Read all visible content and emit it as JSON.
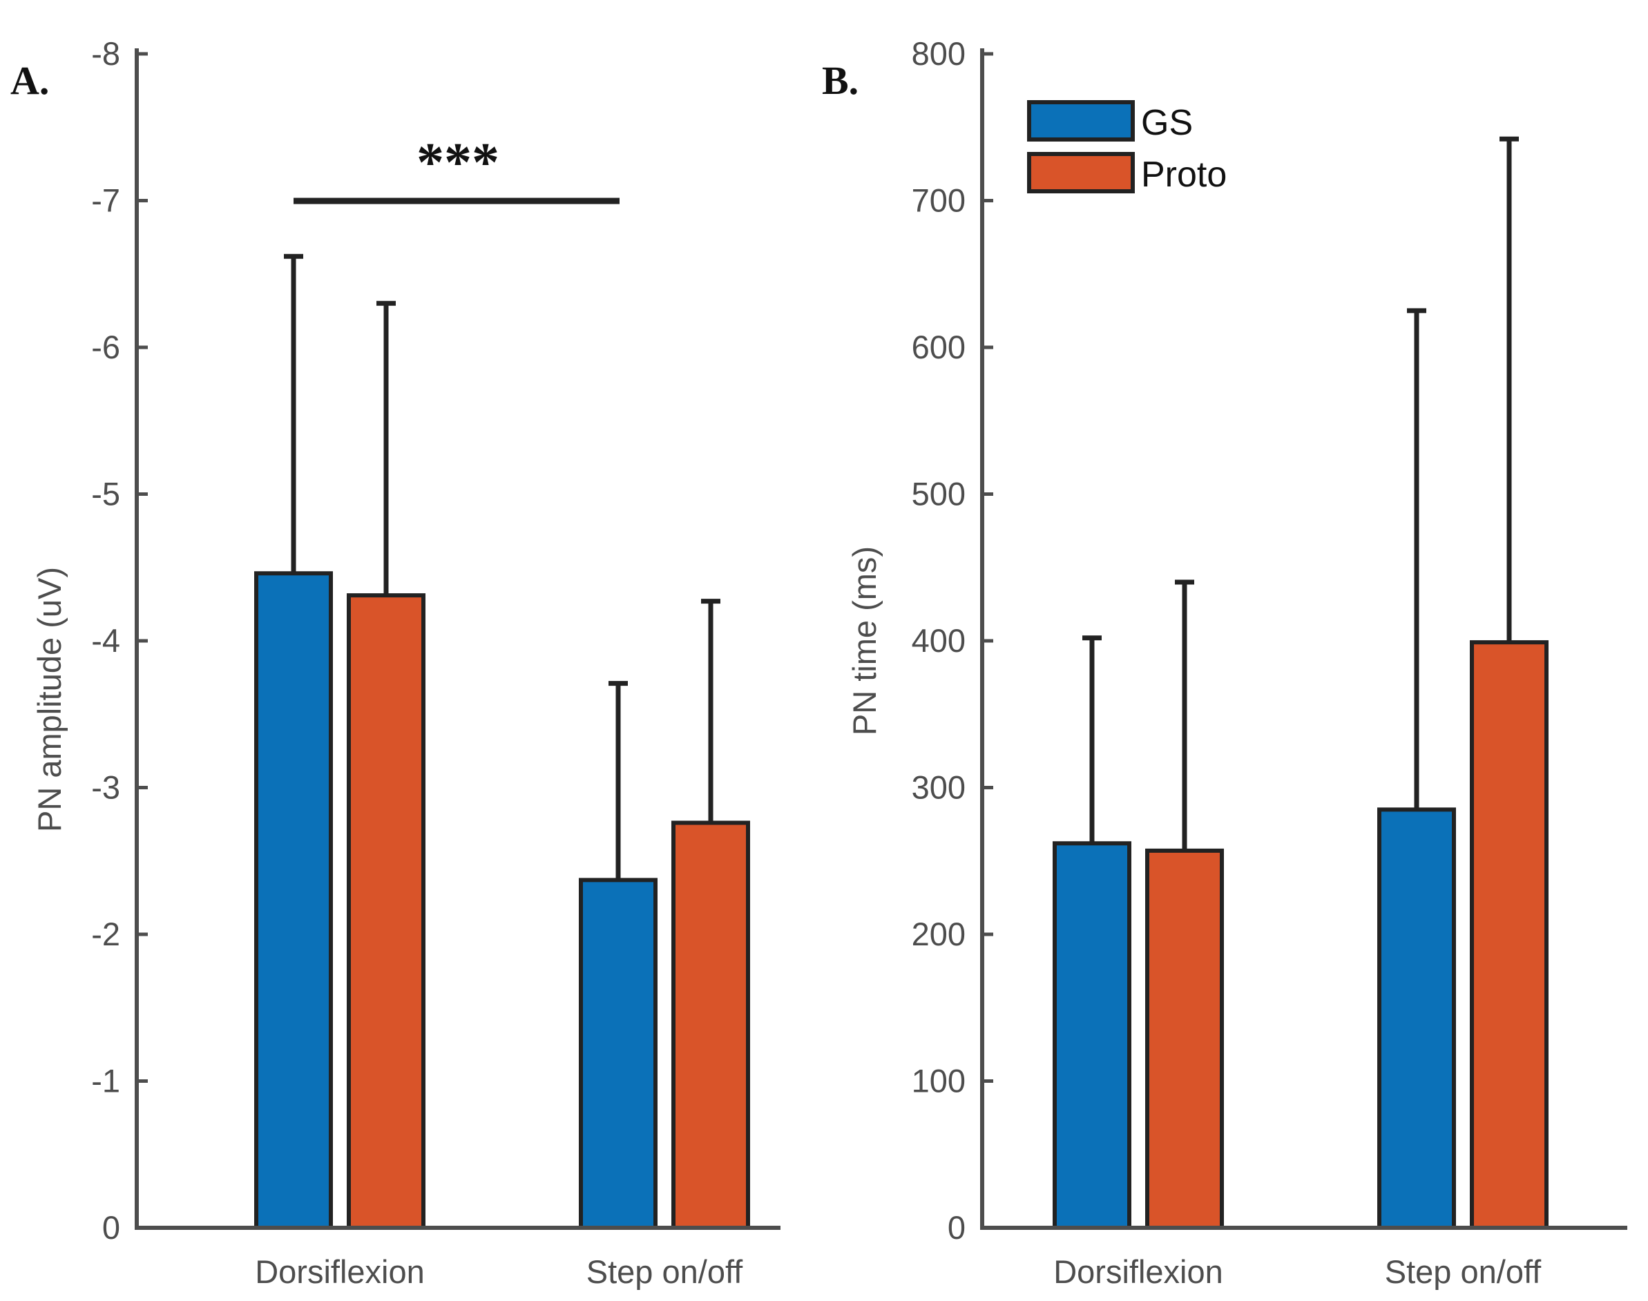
{
  "chart_data": [
    {
      "type": "bar",
      "panel_label": "A.",
      "ylabel": "PN amplitude (uV)",
      "xlabel": "",
      "categories": [
        "Dorsiflexion",
        "Step on/off"
      ],
      "ylim": [
        0,
        -8
      ],
      "y_direction": "reversed",
      "yticks": [
        0,
        -1,
        -2,
        -3,
        -4,
        -5,
        -6,
        -7,
        -8
      ],
      "ytick_labels": [
        "0",
        "-1",
        "-2",
        "-3",
        "-4",
        "-5",
        "-6",
        "-7",
        "-8"
      ],
      "series": [
        {
          "name": "GS",
          "values": [
            -4.46,
            -2.37
          ],
          "error_upper": [
            -6.62,
            -3.71
          ]
        },
        {
          "name": "Proto",
          "values": [
            -4.31,
            -2.76
          ],
          "error_upper": [
            -6.3,
            -4.27
          ]
        }
      ],
      "annotation": {
        "text": "***",
        "bracket_y": -7.0
      }
    },
    {
      "type": "bar",
      "panel_label": "B.",
      "ylabel": "PN time (ms)",
      "xlabel": "",
      "categories": [
        "Dorsiflexion",
        "Step on/off"
      ],
      "ylim": [
        0,
        800
      ],
      "yticks": [
        0,
        100,
        200,
        300,
        400,
        500,
        600,
        700,
        800
      ],
      "ytick_labels": [
        "0",
        "100",
        "200",
        "300",
        "400",
        "500",
        "600",
        "700",
        "800"
      ],
      "series": [
        {
          "name": "GS",
          "values": [
            262,
            285
          ],
          "error_upper": [
            402,
            625
          ]
        },
        {
          "name": "Proto",
          "values": [
            257,
            399
          ],
          "error_upper": [
            440,
            742
          ]
        }
      ],
      "legend": {
        "position": "top-left",
        "entries": [
          "GS",
          "Proto"
        ]
      }
    }
  ],
  "colors": {
    "GS": "#0b71b8",
    "Proto": "#d95429",
    "axis": "#4d4d4d",
    "error": "#222222"
  }
}
